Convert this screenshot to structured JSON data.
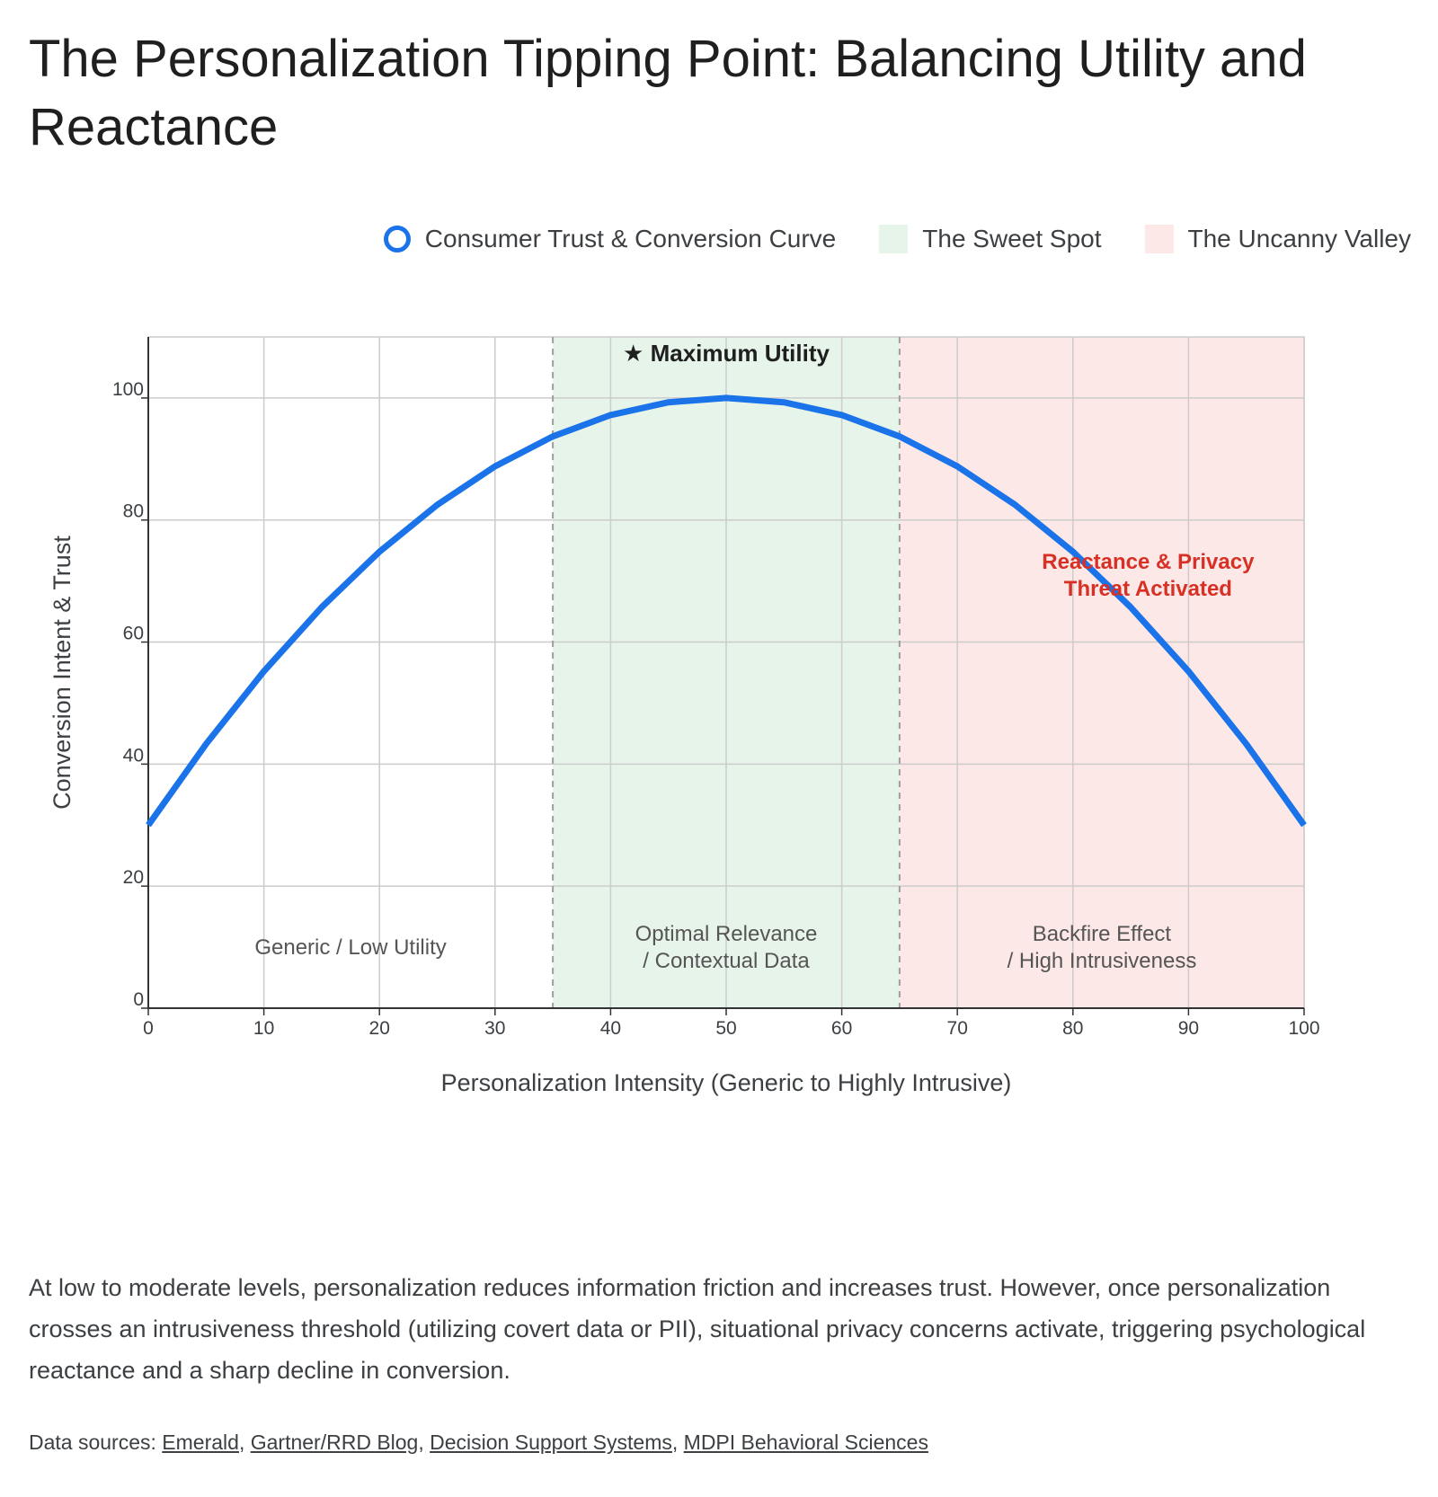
{
  "title": "The Personalization Tipping Point: Balancing Utility and Reactance",
  "legend": {
    "curve": "Consumer Trust & Conversion Curve",
    "sweet_spot": "The Sweet Spot",
    "uncanny_valley": "The Uncanny Valley"
  },
  "colors": {
    "curve": "#1a73e8",
    "sweet_spot": "#e6f4ea",
    "uncanny_valley": "#fce8e6",
    "reactance_text": "#d93025",
    "grid": "#cccccc"
  },
  "chart_data": {
    "type": "line",
    "xlabel": "Personalization Intensity (Generic to Highly Intrusive)",
    "ylabel": "Conversion Intent & Trust",
    "xlim": [
      0,
      100
    ],
    "ylim": [
      0,
      110
    ],
    "x_ticks": [
      0,
      10,
      20,
      30,
      40,
      50,
      60,
      70,
      80,
      90,
      100
    ],
    "y_ticks": [
      0,
      20,
      40,
      60,
      80,
      100
    ],
    "grid": true,
    "legend_position": "top-right",
    "series": [
      {
        "name": "Consumer Trust & Conversion Curve",
        "x": [
          0,
          5,
          10,
          15,
          20,
          25,
          30,
          35,
          40,
          45,
          50,
          55,
          60,
          65,
          70,
          75,
          80,
          85,
          90,
          95,
          100
        ],
        "y": [
          30,
          43.3,
          55.2,
          65.7,
          74.8,
          82.5,
          88.8,
          93.7,
          97.2,
          99.3,
          100,
          99.3,
          97.2,
          93.7,
          88.8,
          82.5,
          74.8,
          65.7,
          55.2,
          43.3,
          30
        ]
      }
    ],
    "regions": [
      {
        "name": "The Sweet Spot",
        "x_start": 35,
        "x_end": 65
      },
      {
        "name": "The Uncanny Valley",
        "x_start": 65,
        "x_end": 100
      }
    ],
    "zone_labels": [
      {
        "lines": [
          "Generic / Low Utility"
        ],
        "x": 17.5,
        "y": 10
      },
      {
        "lines": [
          "Optimal Relevance",
          "/ Contextual Data"
        ],
        "x": 50,
        "y": 10
      },
      {
        "lines": [
          "Backfire Effect",
          "/ High Intrusiveness"
        ],
        "x": 82.5,
        "y": 10
      }
    ],
    "annotations": [
      {
        "text": "★ Maximum Utility",
        "x": 50,
        "y": 106,
        "style": "peak"
      },
      {
        "lines": [
          "Reactance & Privacy",
          "Threat Activated"
        ],
        "x": 86.5,
        "y": 71,
        "style": "warning"
      }
    ]
  },
  "description": "At low to moderate levels, personalization reduces information friction and increases trust. However, once personalization crosses an intrusiveness threshold (utilizing covert data or PII), situational privacy concerns activate, triggering psychological reactance and a sharp decline in conversion.",
  "sources": {
    "prefix": "Data sources: ",
    "links": [
      "Emerald",
      "Gartner/RRD Blog",
      "Decision Support Systems",
      "MDPI Behavioral Sciences"
    ]
  }
}
